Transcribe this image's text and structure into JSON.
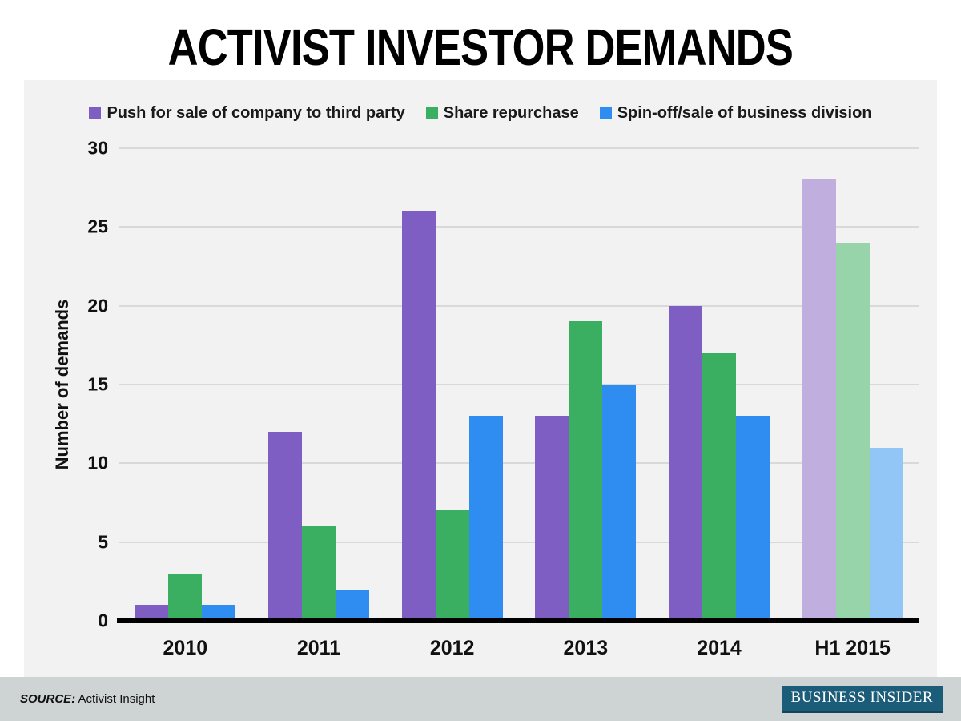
{
  "title": "ACTIVIST INVESTOR DEMANDS",
  "chart_data": {
    "type": "bar",
    "categories": [
      "2010",
      "2011",
      "2012",
      "2013",
      "2014",
      "H1 2015"
    ],
    "series": [
      {
        "name": "Push for sale of company to third party",
        "color": "#7e5ec3",
        "light_color": "#c0aede",
        "values": [
          1,
          12,
          26,
          13,
          20,
          28
        ]
      },
      {
        "name": "Share repurchase",
        "color": "#3aaf61",
        "light_color": "#98d4a9",
        "values": [
          3,
          6,
          7,
          19,
          17,
          24
        ]
      },
      {
        "name": "Spin-off/sale of business division",
        "color": "#2f8cf0",
        "light_color": "#92c6f6",
        "values": [
          1,
          2,
          13,
          15,
          13,
          11
        ]
      }
    ],
    "light_category_index": 5,
    "title": "ACTIVIST INVESTOR DEMANDS",
    "xlabel": "",
    "ylabel": "Number of demands",
    "ylim": [
      0,
      30
    ],
    "yticks": [
      0,
      5,
      10,
      15,
      20,
      25,
      30
    ],
    "grid": true,
    "legend_position": "top"
  },
  "footer": {
    "source_label": "SOURCE:",
    "source_value": "Activist Insight",
    "brand": "BUSINESS INSIDER"
  },
  "colors": {
    "chart_background": "#f2f2f3",
    "footer_background": "#ced3d4",
    "gridline": "#d9d9da",
    "brand_background": "#1b5c78"
  }
}
